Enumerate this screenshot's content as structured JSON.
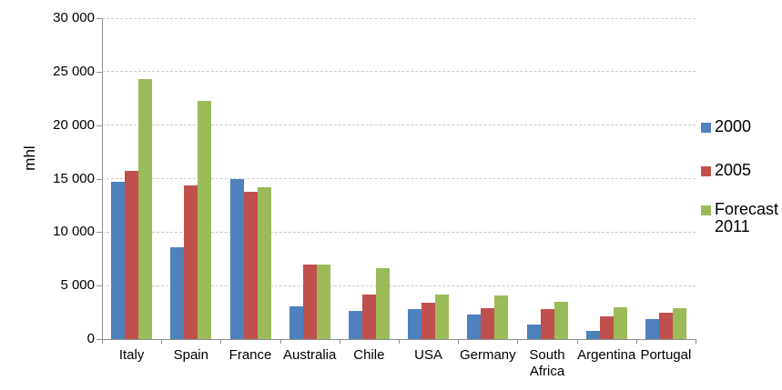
{
  "chart_data": {
    "type": "bar",
    "title": "",
    "ylabel": "mhl",
    "xlabel": "",
    "categories": [
      "Italy",
      "Spain",
      "France",
      "Australia",
      "Chile",
      "USA",
      "Germany",
      "South Africa",
      "Argentina",
      "Portugal"
    ],
    "series": [
      {
        "name": "2000",
        "color": "#4f81bd",
        "values": [
          14700,
          8600,
          15000,
          3100,
          2600,
          2800,
          2300,
          1400,
          800,
          1900
        ]
      },
      {
        "name": "2005",
        "color": "#c0504d",
        "values": [
          15700,
          14400,
          13800,
          7000,
          4200,
          3400,
          2900,
          2800,
          2100,
          2500
        ]
      },
      {
        "name": "Forecast 2011",
        "color": "#9bbb59",
        "values": [
          24300,
          22300,
          14200,
          7000,
          6600,
          4200,
          4100,
          3500,
          3000,
          2900
        ]
      }
    ],
    "ylim": [
      0,
      30000
    ],
    "ytick_step": 5000,
    "ytick_labels": [
      "0",
      "5 000",
      "10 000",
      "15 000",
      "20 000",
      "25 000",
      "30 000"
    ],
    "grid": "horizontal-dashed",
    "legend_position": "right"
  },
  "colors": {
    "axis": "#8e8e8e",
    "gridline": "#c9c9c9",
    "background": "#ffffff",
    "text": "#000000"
  }
}
